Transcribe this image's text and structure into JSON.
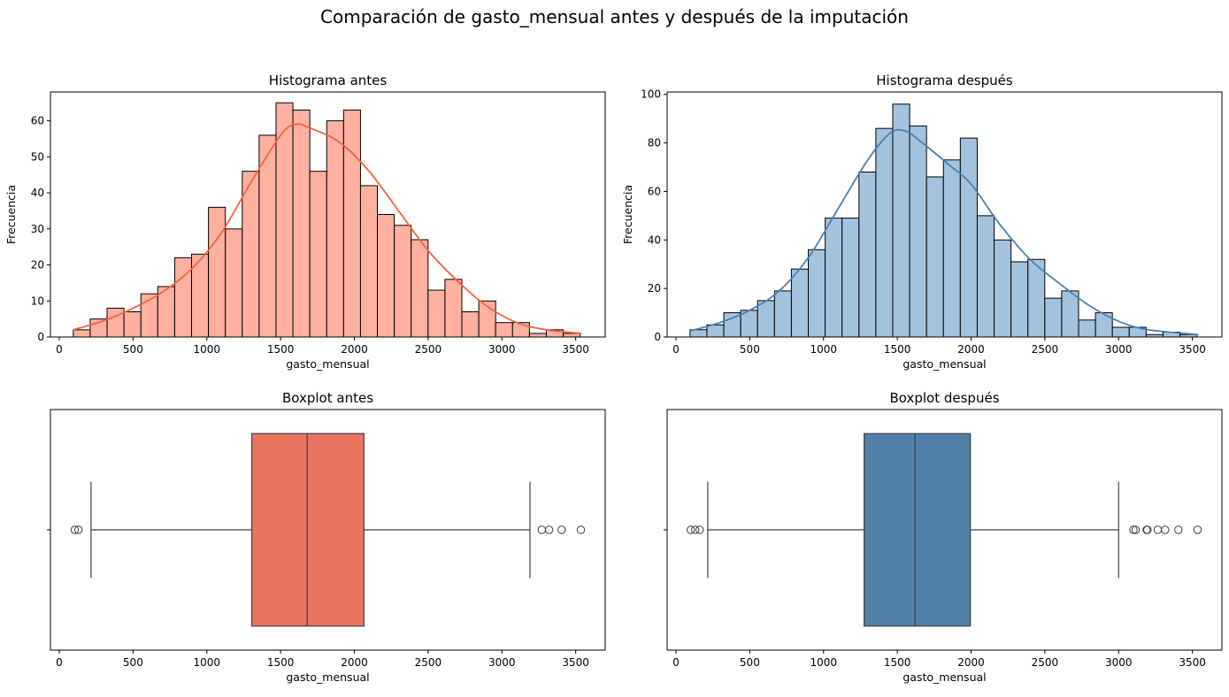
{
  "figure": {
    "title": "Comparación de gasto_mensual antes y después de la imputación"
  },
  "chart_data": [
    {
      "type": "bar",
      "subtype": "histogram",
      "title": "Histograma antes",
      "xlabel": "gasto_mensual",
      "ylabel": "Frecuencia",
      "xlim": [
        -60,
        3700
      ],
      "ylim": [
        0,
        68
      ],
      "xticks": [
        0,
        500,
        1000,
        1500,
        2000,
        2500,
        3000,
        3500
      ],
      "yticks": [
        0,
        10,
        20,
        30,
        40,
        50,
        60
      ],
      "bin_start": 95,
      "bin_width": 114.5,
      "values": [
        2,
        5,
        8,
        7,
        12,
        14,
        22,
        23,
        36,
        30,
        46,
        56,
        65,
        63,
        46,
        60,
        63,
        42,
        34,
        31,
        27,
        13,
        16,
        7,
        10,
        4,
        4,
        1,
        2,
        1
      ],
      "bar_color": "#ffb09f",
      "edge_color": "#000000",
      "kde": {
        "color": "#f4623f",
        "x": [
          95,
          300,
          500,
          700,
          900,
          1100,
          1300,
          1500,
          1600,
          1700,
          1900,
          2100,
          2300,
          2500,
          2700,
          2900,
          3100,
          3300,
          3540
        ],
        "y": [
          2,
          4.5,
          8,
          12.5,
          19,
          29,
          43,
          56,
          59,
          58,
          54,
          46,
          35,
          24,
          15.5,
          8.5,
          4,
          2,
          1
        ]
      },
      "grid": false
    },
    {
      "type": "bar",
      "subtype": "histogram",
      "title": "Histograma después",
      "xlabel": "gasto_mensual",
      "ylabel": "Frecuencia",
      "xlim": [
        -60,
        3700
      ],
      "ylim": [
        0,
        101
      ],
      "xticks": [
        0,
        500,
        1000,
        1500,
        2000,
        2500,
        3000,
        3500
      ],
      "yticks": [
        0,
        20,
        40,
        60,
        80,
        100
      ],
      "bin_start": 95,
      "bin_width": 114.5,
      "values": [
        3,
        5,
        10,
        11,
        15,
        19,
        28,
        36,
        49,
        49,
        68,
        86,
        96,
        87,
        66,
        73,
        82,
        50,
        40,
        31,
        32,
        16,
        19,
        7,
        10,
        4,
        4,
        1,
        2,
        1
      ],
      "bar_color": "#a3c2de",
      "edge_color": "#000000",
      "kde": {
        "color": "#4682b4",
        "x": [
          95,
          300,
          500,
          700,
          900,
          1100,
          1300,
          1450,
          1550,
          1650,
          1850,
          2000,
          2200,
          2400,
          2600,
          2800,
          3000,
          3200,
          3540
        ],
        "y": [
          2.5,
          6,
          11,
          19,
          33,
          53,
          73,
          84,
          85,
          81,
          71,
          63,
          46,
          32,
          22,
          13,
          6.5,
          3,
          1
        ]
      },
      "grid": false
    },
    {
      "type": "box",
      "title": "Boxplot antes",
      "xlabel": "gasto_mensual",
      "xlim": [
        -60,
        3700
      ],
      "xticks": [
        0,
        500,
        1000,
        1500,
        2000,
        2500,
        3000,
        3500
      ],
      "whisker_low": 215,
      "q1": 1305,
      "median": 1680,
      "q3": 2065,
      "whisker_high": 3190,
      "outliers": [
        105,
        130,
        3270,
        3320,
        3405,
        3535
      ],
      "box_color": "#e8745f"
    },
    {
      "type": "box",
      "title": "Boxplot después",
      "xlabel": "gasto_mensual",
      "xlim": [
        -60,
        3700
      ],
      "xticks": [
        0,
        500,
        1000,
        1500,
        2000,
        2500,
        3000,
        3500
      ],
      "whisker_low": 215,
      "q1": 1275,
      "median": 1620,
      "q3": 1995,
      "whisker_high": 3000,
      "outliers": [
        100,
        130,
        160,
        3100,
        3115,
        3190,
        3195,
        3265,
        3315,
        3405,
        3535
      ],
      "box_color": "#5181a8"
    }
  ]
}
